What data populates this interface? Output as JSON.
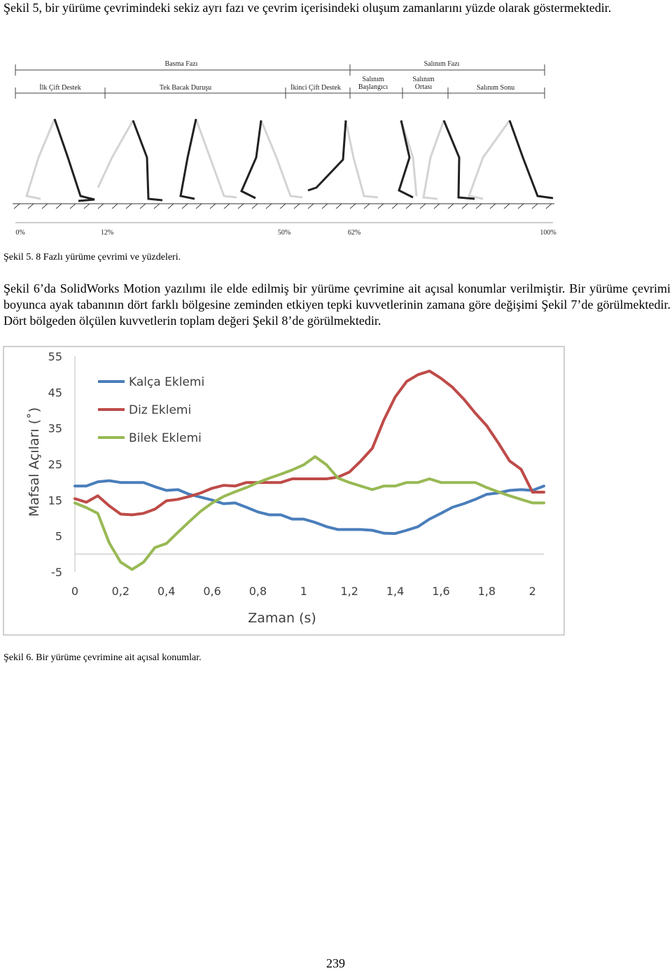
{
  "intro": "Şekil 5, bir yürüme çevrimindeki sekiz ayrı fazı ve çevrim içerisindeki oluşum zamanlarını yüzde olarak göstermektedir.",
  "figure5": {
    "phases": [
      "Basma Fazı",
      "Salınım Fazı"
    ],
    "subphases": [
      [
        "İlk Çift Destek"
      ],
      [
        "Tek Bacak Duruşu"
      ],
      [
        "İkinci Çift Destek"
      ],
      [
        "Salınım",
        "Başlangıcı"
      ],
      [
        "Salınım",
        "Ortası"
      ],
      [
        "Salınım Sonu"
      ]
    ],
    "percents": [
      "0%",
      "12%",
      "50%",
      "62%",
      "100%"
    ],
    "caption": "Şekil 5. 8 Fazlı yürüme çevrimi ve yüzdeleri."
  },
  "paragraph": "Şekil 6’da SolidWorks Motion yazılımı ile elde edilmiş bir yürüme çevrimine ait açısal konumlar verilmiştir. Bir yürüme çevrimi boyunca ayak tabanının dört farklı bölgesine zeminden etkiyen tepki kuvvetlerinin zamana göre değişimi Şekil 7’de görülmektedir. Dört bölgeden ölçülen kuvvetlerin toplam değeri Şekil 8’de görülmektedir.",
  "chart_data": {
    "type": "line",
    "x_label": "Zaman (s)",
    "y_label": "Mafsal Açıları (˚)",
    "x": [
      0,
      0.05,
      0.1,
      0.15,
      0.2,
      0.25,
      0.3,
      0.35,
      0.4,
      0.45,
      0.5,
      0.55,
      0.6,
      0.65,
      0.7,
      0.75,
      0.8,
      0.85,
      0.9,
      0.95,
      1,
      1.05,
      1.1,
      1.15,
      1.2,
      1.25,
      1.3,
      1.35,
      1.4,
      1.45,
      1.5,
      1.55,
      1.6,
      1.65,
      1.7,
      1.75,
      1.8,
      1.85,
      1.9,
      1.95,
      2,
      2.05
    ],
    "series": [
      {
        "name": "Kalça Eklemi",
        "color": "#4a7ebb",
        "values": [
          18.9,
          18.9,
          20.1,
          20.4,
          19.9,
          19.9,
          19.9,
          18.7,
          17.7,
          17.9,
          16.6,
          15.8,
          15,
          14,
          14.2,
          13,
          11.7,
          10.9,
          10.9,
          9.7,
          9.7,
          8.8,
          7.6,
          6.8,
          6.8,
          6.8,
          6.6,
          5.8,
          5.7,
          6.6,
          7.6,
          9.7,
          11.3,
          13,
          14,
          15.2,
          16.6,
          17,
          17.7,
          17.9,
          17.7,
          18.9
        ]
      },
      {
        "name": "Diz Eklemi",
        "color": "#be4b48",
        "values": [
          15.4,
          14.4,
          16.2,
          13.4,
          11.1,
          10.9,
          11.3,
          12.5,
          14.8,
          15.2,
          16,
          17,
          18.3,
          19.1,
          18.9,
          19.9,
          19.9,
          19.9,
          19.9,
          20.9,
          20.9,
          20.9,
          20.9,
          21.4,
          22.8,
          25.9,
          29.4,
          37.2,
          43.7,
          48,
          49.9,
          50.9,
          48.9,
          46.4,
          43.1,
          39.2,
          35.7,
          31,
          25.9,
          23.6,
          17.2,
          17.2
        ]
      },
      {
        "name": "Bilek Eklemi",
        "color": "#98b954",
        "values": [
          14.2,
          12.9,
          11.3,
          3.1,
          -2.3,
          -4.3,
          -2.3,
          1.8,
          2.9,
          6,
          9,
          11.9,
          14.2,
          16,
          17.3,
          18.5,
          19.9,
          21.1,
          22.2,
          23.4,
          24.8,
          27.1,
          24.8,
          21.1,
          19.9,
          18.9,
          17.9,
          18.9,
          18.9,
          19.9,
          19.9,
          20.9,
          19.9,
          19.9,
          19.9,
          19.9,
          18.5,
          17.3,
          16.2,
          15.2,
          14.2,
          14.2
        ]
      }
    ],
    "xlim": [
      0,
      2.05
    ],
    "xticks": [
      0,
      {
        "value": 0.2,
        "label": "0,2"
      },
      {
        "value": 0.4,
        "label": "0,4"
      },
      {
        "value": 0.6,
        "label": "0,6"
      },
      {
        "value": 0.8,
        "label": "0,8"
      },
      1,
      {
        "value": 1.2,
        "label": "1,2"
      },
      {
        "value": 1.4,
        "label": "1,4"
      },
      {
        "value": 1.6,
        "label": "1,6"
      },
      {
        "value": 1.8,
        "label": "1,8"
      },
      2
    ],
    "ylim": [
      -5,
      55
    ],
    "yticks": [
      55,
      45,
      35,
      25,
      15,
      5,
      -5
    ],
    "grid": false
  },
  "figure6_caption": "Şekil 6. Bir yürüme çevrimine ait açısal konumlar.",
  "page_number": "239"
}
